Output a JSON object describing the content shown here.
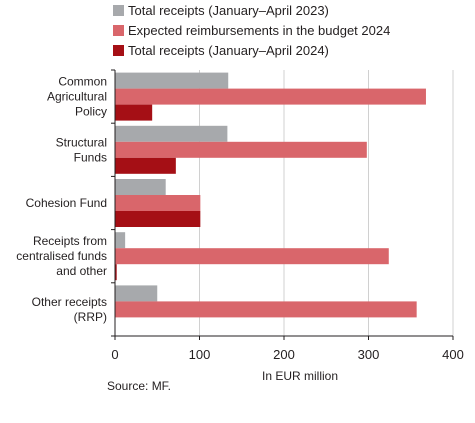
{
  "chart_data": {
    "type": "bar",
    "orientation": "horizontal",
    "categories": [
      [
        "Common",
        "Agricultural",
        "Policy"
      ],
      [
        "Structural",
        "Funds"
      ],
      [
        "Cohesion Fund"
      ],
      [
        "Receipts from",
        "centralised funds",
        "and other"
      ],
      [
        "Other receipts",
        "(RRP)"
      ]
    ],
    "series": [
      {
        "name": "Total receipts (January–April 2023)",
        "color": "#a7a9ac",
        "values": [
          134,
          133,
          60,
          12,
          50
        ]
      },
      {
        "name": "Expected reimbursements in the budget 2024",
        "color": "#d9666b",
        "values": [
          368,
          298,
          101,
          324,
          357
        ]
      },
      {
        "name": "Total receipts (January–April 2024)",
        "color": "#a50f15",
        "values": [
          44,
          72,
          101,
          2,
          0
        ]
      }
    ],
    "xticks": [
      0,
      100,
      200,
      300,
      400
    ],
    "xlim": [
      0,
      400
    ],
    "xlabel": "In EUR million",
    "ylabel": "",
    "grid": "vertical",
    "legend_position": "top"
  },
  "source": "Source: MF."
}
